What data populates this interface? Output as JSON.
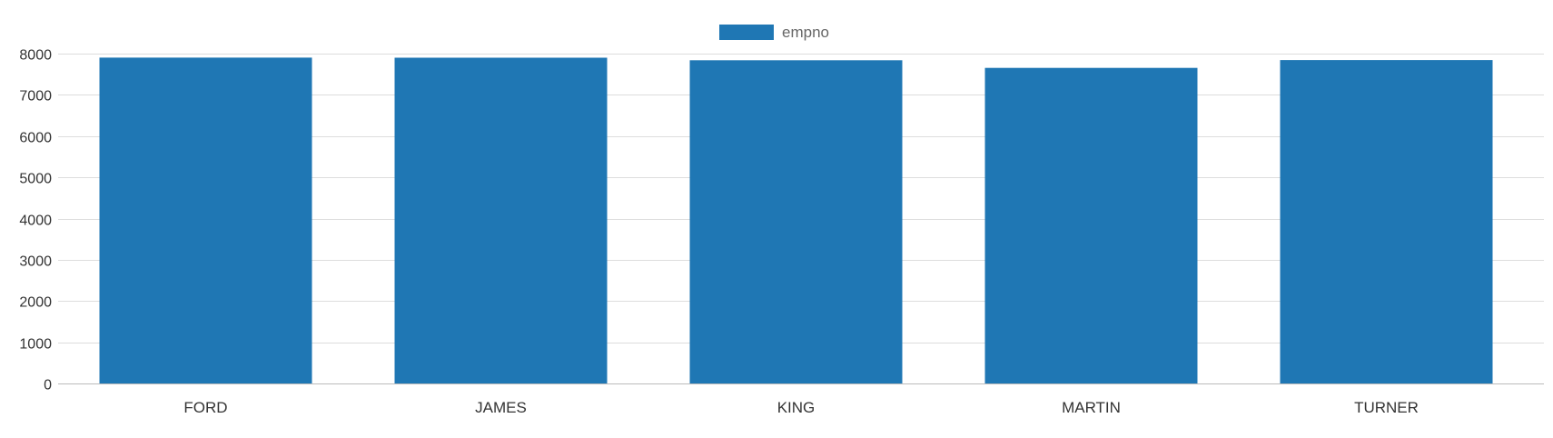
{
  "chart_data": {
    "type": "bar",
    "categories": [
      "FORD",
      "JAMES",
      "KING",
      "MARTIN",
      "TURNER"
    ],
    "series": [
      {
        "name": "empno",
        "values": [
          7902,
          7900,
          7839,
          7654,
          7844
        ],
        "color": "#1f77b4"
      }
    ],
    "ylim": [
      0,
      8000
    ],
    "yticks": [
      0,
      1000,
      2000,
      3000,
      4000,
      5000,
      6000,
      7000,
      8000
    ],
    "grid": true,
    "legend_position": "top-center"
  }
}
